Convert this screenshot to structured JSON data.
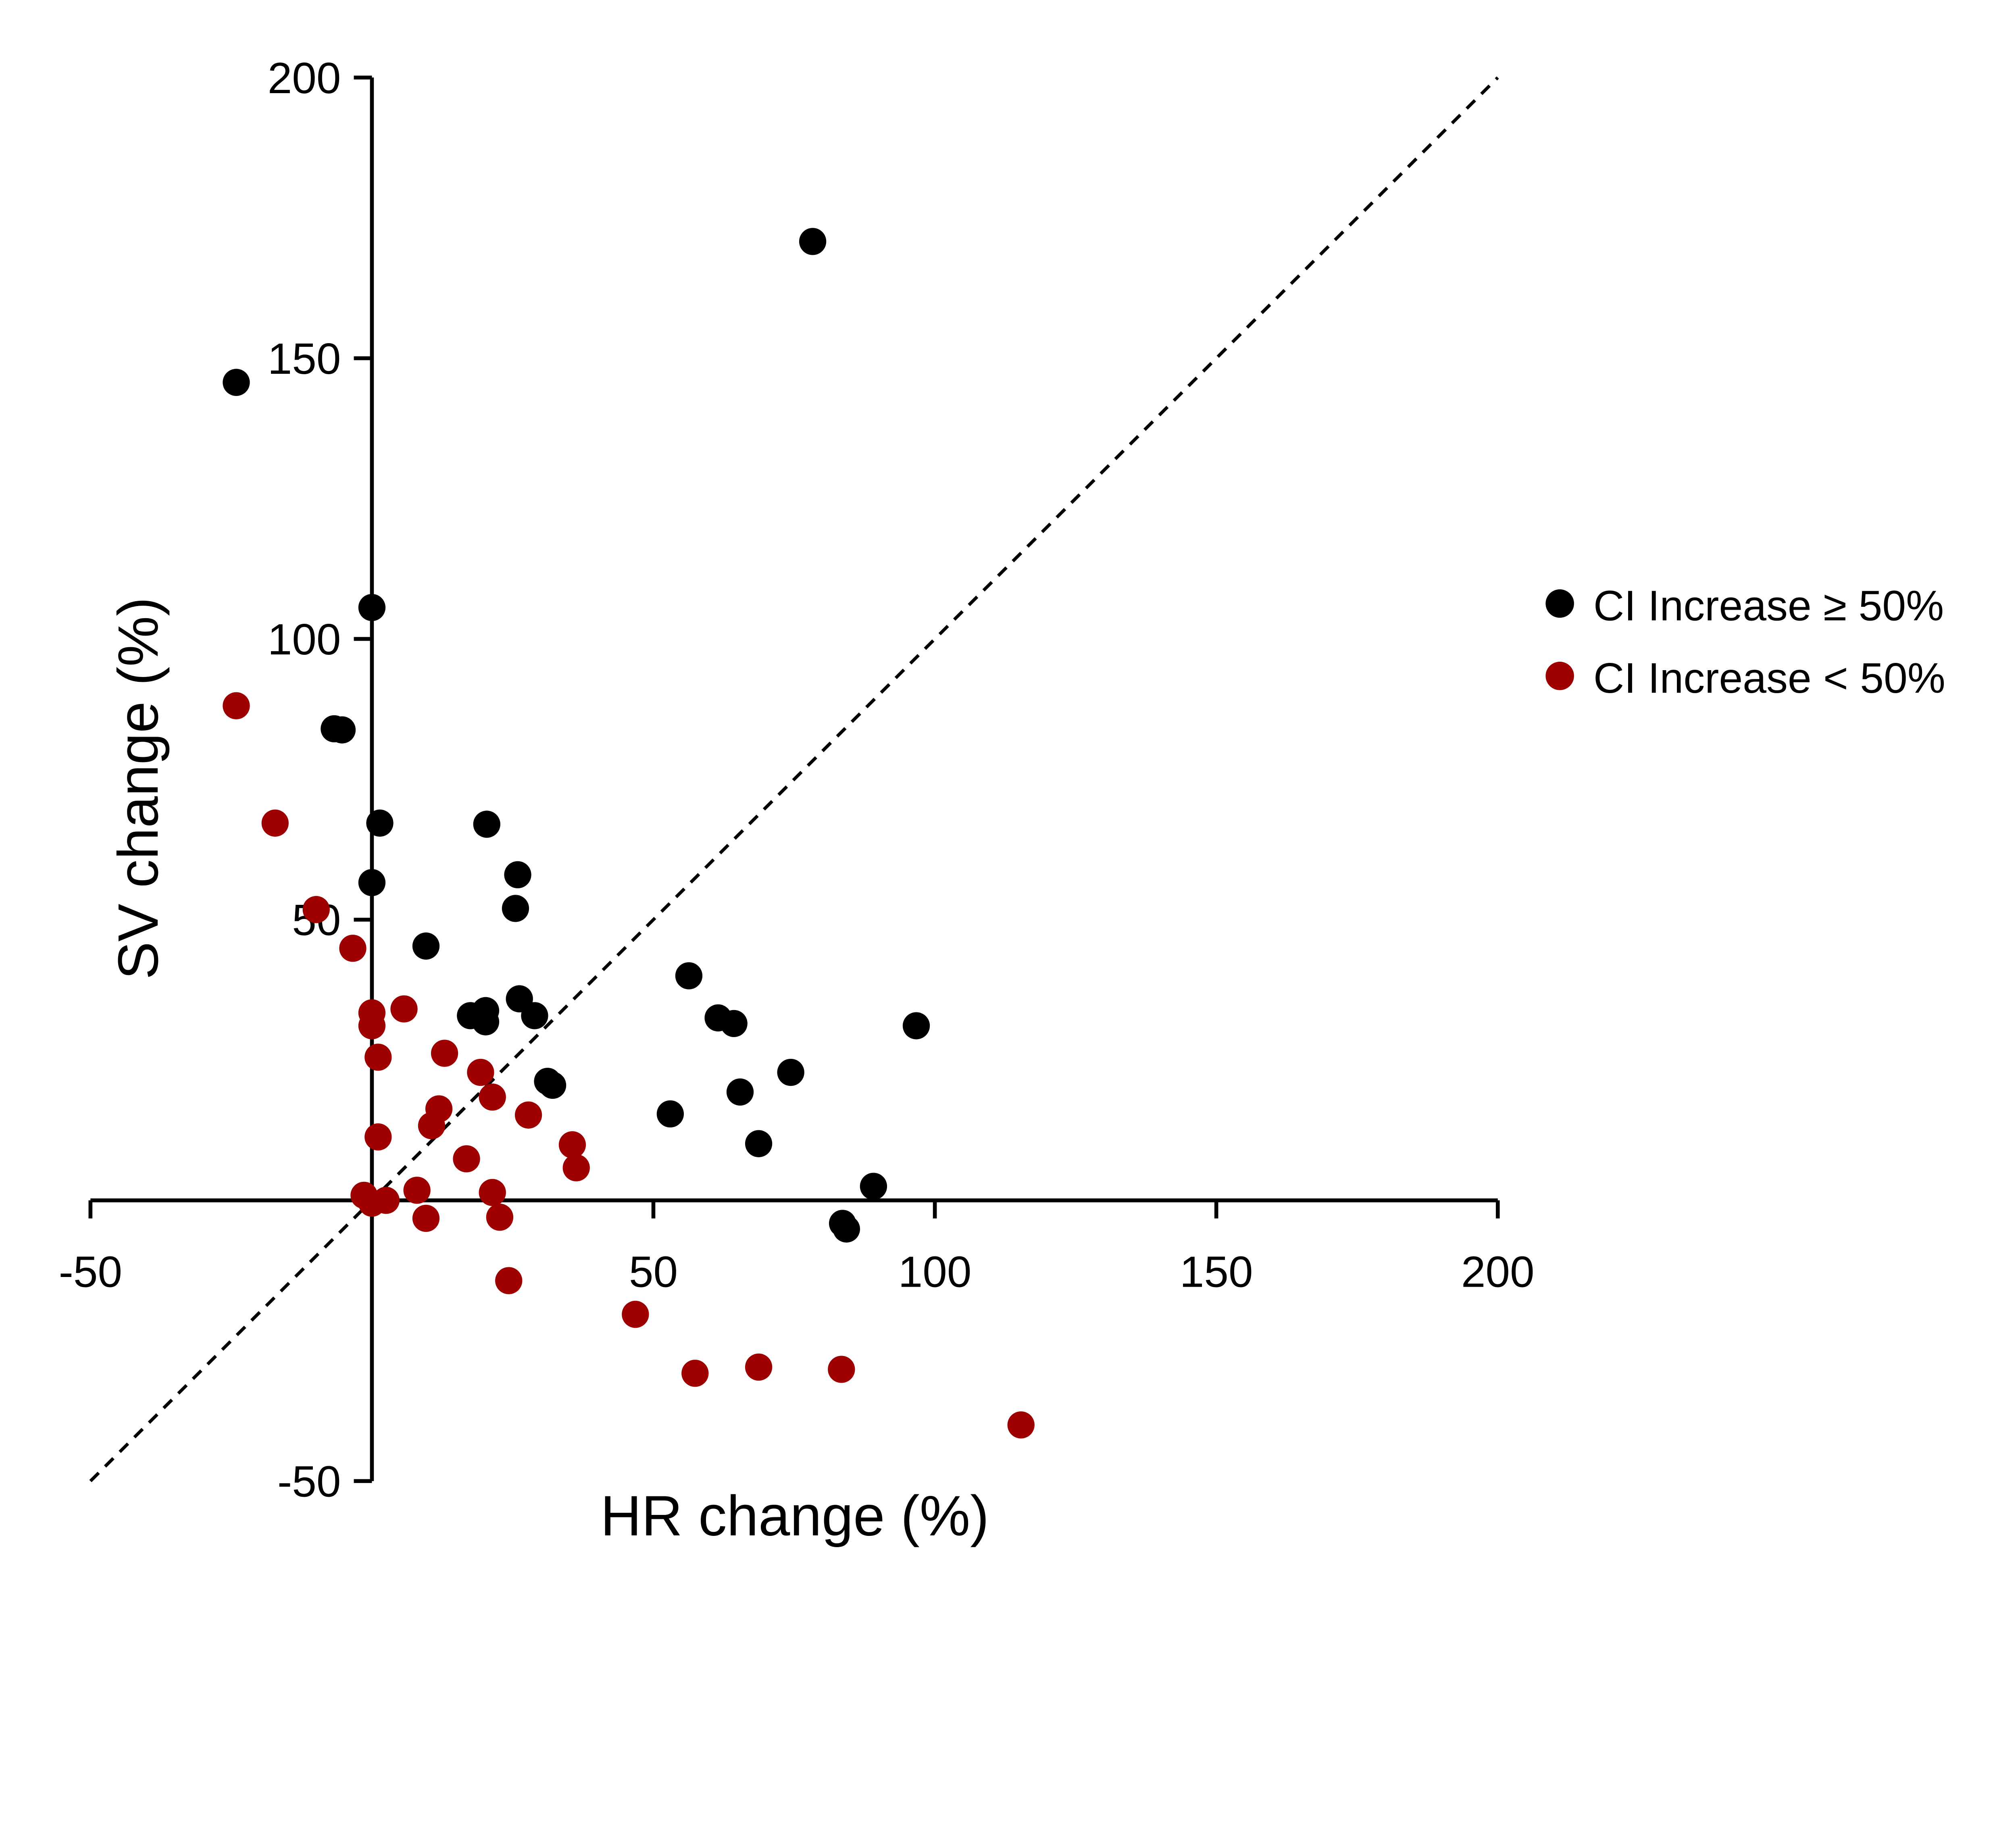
{
  "chart_data": {
    "type": "scatter",
    "title": "",
    "xlabel": "HR change (%)",
    "ylabel": "SV change (%)",
    "xlim": [
      -50,
      200
    ],
    "ylim": [
      -50,
      200
    ],
    "xticks": [
      -50,
      0,
      50,
      100,
      150,
      200
    ],
    "yticks": [
      -50,
      0,
      50,
      100,
      150,
      200
    ],
    "xtick_labels": [
      "-50",
      "50",
      "100",
      "150",
      "200"
    ],
    "ytick_labels": [
      "-50",
      "50",
      "100",
      "150",
      "200"
    ],
    "grid": false,
    "reference_line": {
      "style": "dashed",
      "from": [
        -50,
        -50
      ],
      "to": [
        200,
        200
      ],
      "label": "identity"
    },
    "legend_position": "right",
    "series": [
      {
        "name": "CI Increase ≥ 50%",
        "color": "#000000",
        "points": [
          [
            78.3,
            170.8
          ],
          [
            -24.1,
            145.7
          ],
          [
            0,
            105.6
          ],
          [
            -6.7,
            84.0
          ],
          [
            -5.3,
            83.8
          ],
          [
            1.4,
            67.2
          ],
          [
            20.4,
            67.0
          ],
          [
            0,
            56.6
          ],
          [
            25.9,
            58.0
          ],
          [
            25.5,
            52.0
          ],
          [
            9.6,
            45.3
          ],
          [
            56.3,
            40.0
          ],
          [
            17.5,
            32.9
          ],
          [
            20.2,
            33.8
          ],
          [
            20.2,
            31.8
          ],
          [
            26.2,
            35.9
          ],
          [
            28.9,
            32.9
          ],
          [
            61.5,
            32.5
          ],
          [
            64.3,
            31.5
          ],
          [
            96.7,
            31.1
          ],
          [
            31.2,
            21.2
          ],
          [
            32.1,
            20.5
          ],
          [
            74.4,
            22.8
          ],
          [
            65.4,
            19.3
          ],
          [
            53.0,
            15.4
          ],
          [
            68.7,
            10.1
          ],
          [
            89.1,
            2.5
          ],
          [
            83.6,
            -4.1
          ],
          [
            84.3,
            -5.1
          ]
        ]
      },
      {
        "name": "CI Increase < 50%",
        "color": "#9e0000",
        "points": [
          [
            -24.1,
            88.1
          ],
          [
            -17.2,
            67.2
          ],
          [
            -9.9,
            51.8
          ],
          [
            -3.4,
            44.9
          ],
          [
            0,
            33.4
          ],
          [
            0,
            31.1
          ],
          [
            5.7,
            34.1
          ],
          [
            1.1,
            25.5
          ],
          [
            12.9,
            26.2
          ],
          [
            19.3,
            22.8
          ],
          [
            21.4,
            18.4
          ],
          [
            27.8,
            15.2
          ],
          [
            11.9,
            16.3
          ],
          [
            10.6,
            13.3
          ],
          [
            1.1,
            11.3
          ],
          [
            35.6,
            9.9
          ],
          [
            36.3,
            5.8
          ],
          [
            16.8,
            7.4
          ],
          [
            -1.4,
            0.9
          ],
          [
            0,
            -0.5
          ],
          [
            2.5,
            0
          ],
          [
            8.0,
            1.8
          ],
          [
            21.4,
            1.4
          ],
          [
            9.6,
            -3.2
          ],
          [
            22.7,
            -3.0
          ],
          [
            24.3,
            -14.3
          ],
          [
            46.8,
            -20.3
          ],
          [
            57.4,
            -30.8
          ],
          [
            68.7,
            -29.7
          ],
          [
            83.4,
            -30.1
          ],
          [
            115.3,
            -40.0
          ]
        ]
      }
    ]
  }
}
